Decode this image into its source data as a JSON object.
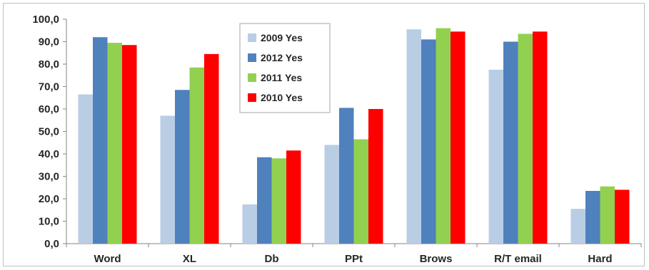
{
  "chart_data": {
    "type": "bar",
    "title": "",
    "xlabel": "",
    "ylabel": "",
    "ylim": [
      0,
      100
    ],
    "yticks": [
      "0,0",
      "10,0",
      "20,0",
      "30,0",
      "40,0",
      "50,0",
      "60,0",
      "70,0",
      "80,0",
      "90,0",
      "100,0"
    ],
    "grid": false,
    "legend_position": "top-center",
    "categories": [
      "Word",
      "XL",
      "Db",
      "PPt",
      "Brows",
      "R/T email",
      "Hard"
    ],
    "series": [
      {
        "name": "2009 Yes",
        "color": "#b9cde5",
        "values": [
          66.5,
          57.0,
          17.5,
          44.0,
          95.5,
          77.5,
          15.5
        ]
      },
      {
        "name": "2012 Yes",
        "color": "#4f81bd",
        "values": [
          92.0,
          68.5,
          38.5,
          60.5,
          91.0,
          90.0,
          23.5
        ]
      },
      {
        "name": "2011 Yes",
        "color": "#92d050",
        "values": [
          89.5,
          78.5,
          38.0,
          46.5,
          96.0,
          93.5,
          25.5
        ]
      },
      {
        "name": "2010 Yes",
        "color": "#ff0000",
        "values": [
          88.5,
          84.5,
          41.5,
          60.0,
          94.5,
          94.5,
          24.0
        ]
      }
    ]
  }
}
